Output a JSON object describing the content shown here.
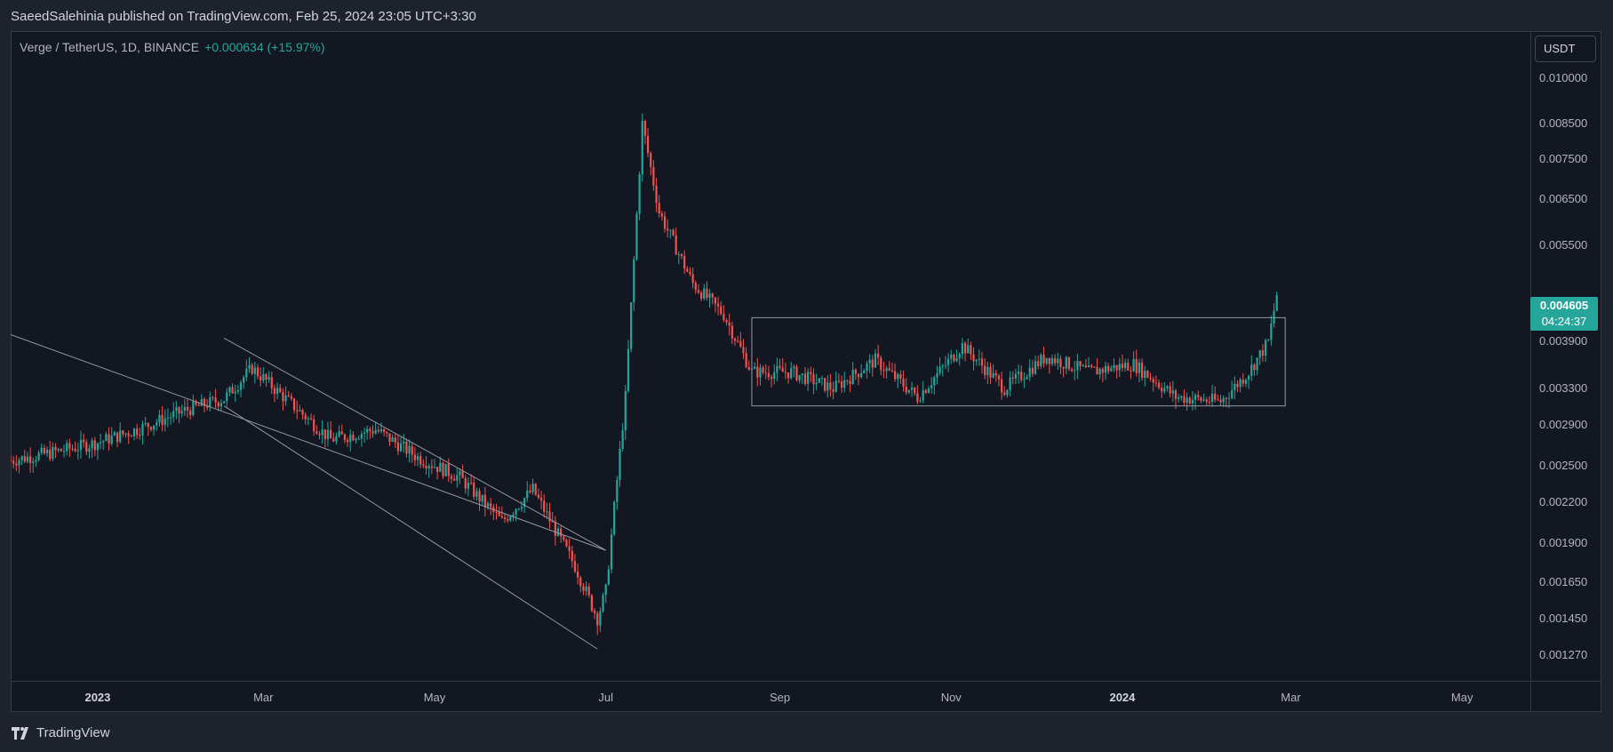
{
  "publisher_line": "SaeedSalehinia published on TradingView.com, Feb 25, 2024 23:05 UTC+3:30",
  "legend": {
    "symbol": "Verge / TetherUS, 1D, BINANCE",
    "change": "+0.000634 (+15.97%)"
  },
  "currency_button": "USDT",
  "last_price": {
    "price": "0.004605",
    "countdown": "04:24:37"
  },
  "colors": {
    "up": "#26a69a",
    "down": "#ef5350",
    "background": "#131722",
    "lines": "#9598a1"
  },
  "footer": {
    "brand": "TradingView",
    "logo_icon": "tradingview-logo-icon"
  },
  "chart_data": {
    "type": "candlestick",
    "title": "Verge / TetherUS, 1D, BINANCE",
    "yscale": "log",
    "ylim": [
      0.00116,
      0.0118
    ],
    "xlim": [
      "2022-12-01",
      "2024-05-25"
    ],
    "y_ticks": [
      "0.010000",
      "0.008500",
      "0.007500",
      "0.006500",
      "0.005500",
      "0.003900",
      "0.003300",
      "0.002900",
      "0.002500",
      "0.002200",
      "0.001900",
      "0.001650",
      "0.001450",
      "0.001270"
    ],
    "x_ticks": [
      {
        "label": "2023",
        "date": "2023-01-01",
        "bold": true
      },
      {
        "label": "Mar",
        "date": "2023-03-01",
        "bold": false
      },
      {
        "label": "May",
        "date": "2023-05-01",
        "bold": false
      },
      {
        "label": "Jul",
        "date": "2023-07-01",
        "bold": false
      },
      {
        "label": "Sep",
        "date": "2023-09-01",
        "bold": false
      },
      {
        "label": "Nov",
        "date": "2023-11-01",
        "bold": false
      },
      {
        "label": "2024",
        "date": "2024-01-01",
        "bold": true
      },
      {
        "label": "Mar",
        "date": "2024-03-01",
        "bold": false
      },
      {
        "label": "May",
        "date": "2024-05-01",
        "bold": false
      }
    ],
    "approx_close_series": [
      [
        "2022-12-01",
        0.00255
      ],
      [
        "2022-12-15",
        0.00262
      ],
      [
        "2023-01-01",
        0.00272
      ],
      [
        "2023-01-15",
        0.00285
      ],
      [
        "2023-02-01",
        0.00305
      ],
      [
        "2023-02-15",
        0.00318
      ],
      [
        "2023-02-25",
        0.00355
      ],
      [
        "2023-03-10",
        0.00315
      ],
      [
        "2023-03-25",
        0.00275
      ],
      [
        "2023-04-10",
        0.00285
      ],
      [
        "2023-04-25",
        0.00258
      ],
      [
        "2023-05-10",
        0.0024
      ],
      [
        "2023-05-25",
        0.00205
      ],
      [
        "2023-06-05",
        0.0023
      ],
      [
        "2023-06-20",
        0.00175
      ],
      [
        "2023-06-28",
        0.00145
      ],
      [
        "2023-07-01",
        0.0016
      ],
      [
        "2023-07-08",
        0.0032
      ],
      [
        "2023-07-14",
        0.0085
      ],
      [
        "2023-07-20",
        0.0062
      ],
      [
        "2023-08-01",
        0.0048
      ],
      [
        "2023-08-12",
        0.0043
      ],
      [
        "2023-08-22",
        0.0035
      ],
      [
        "2023-09-05",
        0.0035
      ],
      [
        "2023-09-20",
        0.0033
      ],
      [
        "2023-10-05",
        0.00365
      ],
      [
        "2023-10-20",
        0.0032
      ],
      [
        "2023-11-05",
        0.00385
      ],
      [
        "2023-11-20",
        0.0033
      ],
      [
        "2023-12-05",
        0.0037
      ],
      [
        "2023-12-20",
        0.0035
      ],
      [
        "2024-01-05",
        0.0036
      ],
      [
        "2024-01-20",
        0.0032
      ],
      [
        "2024-02-05",
        0.00315
      ],
      [
        "2024-02-15",
        0.0035
      ],
      [
        "2024-02-22",
        0.0039
      ],
      [
        "2024-02-25",
        0.004605
      ]
    ],
    "drawings": {
      "descending_channel": [
        {
          "from": [
            "2022-12-01",
            0.004
          ],
          "to": [
            "2023-07-01",
            0.00185
          ]
        },
        {
          "from": [
            "2023-02-15",
            0.00395
          ],
          "to": [
            "2023-07-01",
            0.00185
          ]
        },
        {
          "from": [
            "2023-02-15",
            0.0031
          ],
          "to": [
            "2023-06-28",
            0.0013
          ]
        }
      ],
      "range_box": {
        "from": "2023-08-22",
        "to": "2024-02-28",
        "high": 0.00425,
        "low": 0.0031
      }
    }
  }
}
